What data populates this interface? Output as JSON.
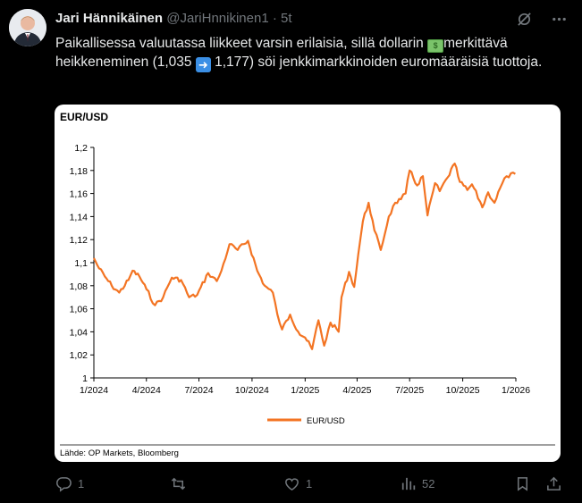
{
  "author": {
    "name": "Jari Hännikäinen",
    "handle": "@JariHnnikinen1",
    "separator": "·",
    "time": "5t"
  },
  "tweet": {
    "part1": "Paikallisessa valuutassa liikkeet varsin erilaisia, sillä dollarin ",
    "part2": "merkittävä heikkeneminen (1,035 ",
    "part3": " 1,177) söi jenkkimarkkinoiden euromääräisiä tuottoja."
  },
  "actions": {
    "replies": "1",
    "likes": "1",
    "views": "52"
  },
  "colors": {
    "series": "#f37423",
    "background": "#000000",
    "muted": "#71767b"
  },
  "icons": [
    "grok-icon",
    "more-icon",
    "reply-icon",
    "retweet-icon",
    "like-icon",
    "views-icon",
    "bookmark-icon",
    "share-icon"
  ],
  "chart_data": {
    "type": "line",
    "title": "EUR/USD",
    "source": "Lähde: OP Markets, Bloomberg",
    "legend_position": "bottom",
    "grid": false,
    "ylim": [
      1,
      1.2
    ],
    "y_ticks": [
      "1",
      "1,02",
      "1,04",
      "1,06",
      "1,08",
      "1,1",
      "1,12",
      "1,14",
      "1,16",
      "1,18",
      "1,2"
    ],
    "x_ticks": [
      "1/2024",
      "4/2024",
      "7/2024",
      "10/2024",
      "1/2025",
      "4/2025",
      "7/2025",
      "10/2025",
      "1/2026"
    ],
    "series": [
      {
        "name": "EUR/USD",
        "x": [
          "2024-01-01",
          "2024-01-10",
          "2024-01-20",
          "2024-02-01",
          "2024-02-14",
          "2024-03-01",
          "2024-03-08",
          "2024-03-20",
          "2024-04-01",
          "2024-04-16",
          "2024-04-30",
          "2024-05-15",
          "2024-05-31",
          "2024-06-14",
          "2024-06-28",
          "2024-07-17",
          "2024-08-01",
          "2024-08-09",
          "2024-08-23",
          "2024-09-06",
          "2024-09-24",
          "2024-10-10",
          "2024-10-23",
          "2024-11-06",
          "2024-11-14",
          "2024-11-22",
          "2024-12-06",
          "2024-12-20",
          "2025-01-01",
          "2025-01-13",
          "2025-01-24",
          "2025-02-03",
          "2025-02-14",
          "2025-02-28",
          "2025-03-05",
          "2025-03-18",
          "2025-03-27",
          "2025-04-03",
          "2025-04-11",
          "2025-04-21",
          "2025-05-01",
          "2025-05-12",
          "2025-05-26",
          "2025-06-06",
          "2025-06-16",
          "2025-06-24",
          "2025-07-01",
          "2025-07-14",
          "2025-07-24",
          "2025-08-01",
          "2025-08-14",
          "2025-08-22",
          "2025-09-05",
          "2025-09-17",
          "2025-09-26",
          "2025-10-09",
          "2025-10-17",
          "2025-10-31",
          "2025-11-04",
          "2025-11-14",
          "2025-11-25",
          "2025-12-05",
          "2025-12-16",
          "2025-12-31"
        ],
        "values": [
          1.104,
          1.095,
          1.088,
          1.08,
          1.074,
          1.085,
          1.093,
          1.088,
          1.077,
          1.063,
          1.07,
          1.087,
          1.085,
          1.07,
          1.072,
          1.091,
          1.084,
          1.093,
          1.116,
          1.111,
          1.119,
          1.093,
          1.08,
          1.074,
          1.055,
          1.042,
          1.055,
          1.04,
          1.035,
          1.025,
          1.05,
          1.028,
          1.048,
          1.04,
          1.07,
          1.092,
          1.079,
          1.107,
          1.136,
          1.152,
          1.128,
          1.111,
          1.14,
          1.152,
          1.155,
          1.16,
          1.18,
          1.167,
          1.175,
          1.141,
          1.169,
          1.162,
          1.174,
          1.186,
          1.17,
          1.163,
          1.168,
          1.153,
          1.148,
          1.161,
          1.152,
          1.165,
          1.175,
          1.177
        ]
      }
    ]
  }
}
